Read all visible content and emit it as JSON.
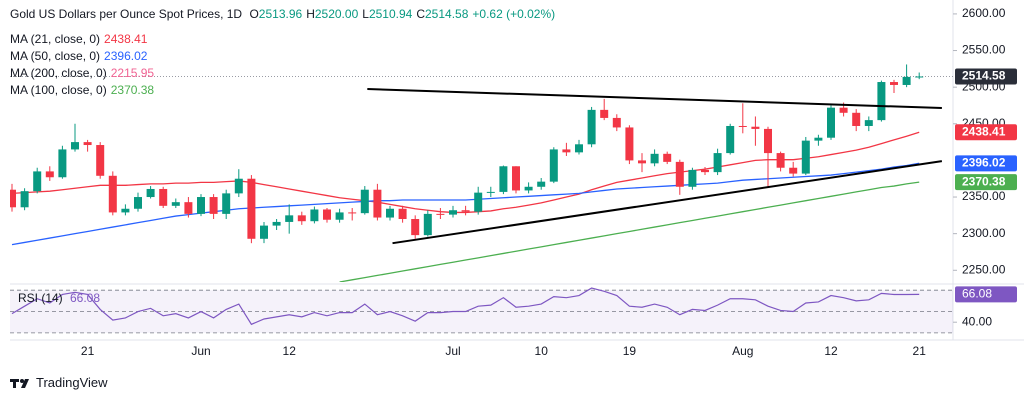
{
  "chart_data": {
    "type": "candlestick",
    "title": "Gold US Dollars per Ounce Spot Prices, 1D",
    "ohlc_legend": [
      {
        "label": "O",
        "value": "2513.96"
      },
      {
        "label": "H",
        "value": "2520.00"
      },
      {
        "label": "L",
        "value": "2510.94"
      },
      {
        "label": "C",
        "value": "2514.58"
      }
    ],
    "change": "+0.62 (+0.02%)",
    "up_color": "#089981",
    "down_color": "#f23645",
    "categories": [
      null,
      null,
      null,
      null,
      null,
      null,
      "21",
      null,
      null,
      null,
      null,
      null,
      null,
      null,
      null,
      "Jun",
      null,
      null,
      null,
      null,
      null,
      null,
      "12",
      null,
      null,
      null,
      null,
      null,
      null,
      null,
      null,
      null,
      null,
      null,
      null,
      "Jul",
      null,
      null,
      null,
      null,
      null,
      null,
      "10",
      null,
      null,
      null,
      null,
      null,
      null,
      "19",
      null,
      null,
      null,
      null,
      null,
      null,
      null,
      null,
      "Aug",
      null,
      null,
      null,
      null,
      null,
      null,
      "12",
      null,
      null,
      null,
      null,
      null,
      null,
      "21"
    ],
    "open": [
      2360,
      2336,
      2358,
      2385,
      2377,
      2415,
      2425,
      2421,
      2379,
      2329,
      2334,
      2350,
      2361,
      2338,
      2343,
      2327,
      2350,
      2327,
      2355,
      2375,
      2293,
      2311,
      2316,
      2325,
      2317,
      2333,
      2319,
      2329,
      2328,
      2360,
      2322,
      2334,
      2320,
      2298,
      2327,
      2326,
      2332,
      2330,
      2356,
      2357,
      2392,
      2359,
      2364,
      2371,
      2415,
      2411,
      2422,
      2469,
      2458,
      2445,
      2400,
      2396,
      2409,
      2398,
      2364,
      2387,
      2384,
      2410,
      2447,
      2446,
      2443,
      2410,
      2390,
      2382,
      2427,
      2431,
      2472,
      2465,
      2447,
      2455,
      2507,
      2503,
      2513.96
    ],
    "high": [
      2368,
      2362,
      2390,
      2392,
      2420,
      2450,
      2428,
      2425,
      2385,
      2340,
      2356,
      2365,
      2364,
      2348,
      2350,
      2354,
      2354,
      2360,
      2388,
      2380,
      2316,
      2320,
      2340,
      2330,
      2337,
      2335,
      2334,
      2335,
      2365,
      2368,
      2338,
      2338,
      2325,
      2332,
      2335,
      2338,
      2338,
      2364,
      2364,
      2393,
      2392,
      2370,
      2376,
      2418,
      2424,
      2428,
      2473,
      2484,
      2463,
      2448,
      2410,
      2415,
      2412,
      2401,
      2390,
      2391,
      2416,
      2450,
      2478,
      2460,
      2446,
      2412,
      2398,
      2432,
      2435,
      2475,
      2479,
      2470,
      2460,
      2509,
      2510,
      2531,
      2520
    ],
    "low": [
      2330,
      2332,
      2355,
      2372,
      2375,
      2412,
      2412,
      2375,
      2325,
      2325,
      2330,
      2348,
      2335,
      2335,
      2322,
      2324,
      2320,
      2320,
      2350,
      2287,
      2287,
      2305,
      2300,
      2312,
      2314,
      2315,
      2315,
      2318,
      2326,
      2318,
      2318,
      2315,
      2293,
      2296,
      2320,
      2322,
      2325,
      2326,
      2350,
      2354,
      2355,
      2355,
      2360,
      2369,
      2406,
      2408,
      2418,
      2455,
      2440,
      2395,
      2384,
      2392,
      2395,
      2353,
      2360,
      2380,
      2380,
      2408,
      2437,
      2420,
      2364,
      2385,
      2378,
      2380,
      2420,
      2428,
      2460,
      2440,
      2440,
      2453,
      2492,
      2500,
      2510.94
    ],
    "close": [
      2336,
      2358,
      2385,
      2377,
      2415,
      2425,
      2421,
      2379,
      2329,
      2334,
      2350,
      2361,
      2338,
      2343,
      2327,
      2350,
      2327,
      2355,
      2375,
      2293,
      2311,
      2316,
      2325,
      2317,
      2333,
      2319,
      2329,
      2328,
      2360,
      2322,
      2334,
      2320,
      2298,
      2327,
      2326,
      2332,
      2330,
      2356,
      2357,
      2392,
      2359,
      2364,
      2371,
      2415,
      2411,
      2422,
      2469,
      2458,
      2445,
      2400,
      2396,
      2409,
      2398,
      2364,
      2387,
      2384,
      2410,
      2447,
      2446,
      2443,
      2410,
      2390,
      2382,
      2427,
      2431,
      2472,
      2465,
      2447,
      2455,
      2507,
      2503,
      2514,
      2514.58
    ],
    "last_price_label": "2514.58",
    "overlays": [
      {
        "name": "MA (21, close, 0)",
        "color": "#f23645",
        "value_label": "2438.41",
        "values": [
          2355,
          2356,
          2357,
          2358,
          2360,
          2362,
          2364,
          2366,
          2366,
          2366,
          2367,
          2368,
          2368,
          2369,
          2369,
          2370,
          2370,
          2371,
          2372,
          2370,
          2367,
          2364,
          2361,
          2358,
          2355,
          2352,
          2349,
          2347,
          2345,
          2343,
          2340,
          2337,
          2334,
          2332,
          2330,
          2329,
          2329,
          2330,
          2331,
          2334,
          2336,
          2339,
          2342,
          2346,
          2350,
          2354,
          2360,
          2365,
          2370,
          2373,
          2376,
          2379,
          2382,
          2384,
          2386,
          2388,
          2391,
          2394,
          2397,
          2400,
          2401,
          2401,
          2401,
          2403,
          2405,
          2408,
          2411,
          2414,
          2418,
          2423,
          2428,
          2433,
          2438.41
        ]
      },
      {
        "name": "MA (50, close, 0)",
        "color": "#2962ff",
        "value_label": "2396.02",
        "values": [
          2285,
          2288,
          2291,
          2294,
          2297,
          2300,
          2303,
          2306,
          2309,
          2312,
          2315,
          2318,
          2321,
          2324,
          2326,
          2328,
          2330,
          2332,
          2334,
          2335,
          2336,
          2337,
          2338,
          2339,
          2340,
          2341,
          2342,
          2343,
          2344,
          2345,
          2345,
          2346,
          2346,
          2346,
          2346,
          2346,
          2346,
          2347,
          2348,
          2349,
          2350,
          2351,
          2352,
          2353,
          2354,
          2355,
          2357,
          2359,
          2361,
          2362,
          2363,
          2364,
          2365,
          2366,
          2367,
          2368,
          2369,
          2371,
          2373,
          2374,
          2375,
          2376,
          2377,
          2378,
          2379,
          2380,
          2382,
          2384,
          2386,
          2388,
          2391,
          2393,
          2396.02
        ]
      },
      {
        "name": "MA (200, close, 0)",
        "color": "#f06292",
        "value_label": "2215.95"
      },
      {
        "name": "MA (100, close, 0)",
        "color": "#4caf50",
        "value_label": "2370.38",
        "values": [
          null,
          null,
          null,
          null,
          null,
          null,
          null,
          null,
          null,
          null,
          null,
          null,
          null,
          null,
          null,
          null,
          null,
          null,
          null,
          null,
          null,
          null,
          null,
          null,
          null,
          null,
          2234,
          2237,
          2240,
          2243,
          2246,
          2249,
          2252,
          2255,
          2258,
          2261,
          2264,
          2267,
          2270,
          2273,
          2276,
          2279,
          2282,
          2285,
          2288,
          2291,
          2294,
          2297,
          2300,
          2303,
          2306,
          2309,
          2312,
          2315,
          2318,
          2321,
          2324,
          2327,
          2330,
          2333,
          2336,
          2339,
          2342,
          2345,
          2348,
          2351,
          2354,
          2357,
          2360,
          2363,
          2365,
          2368,
          2370.38
        ]
      }
    ],
    "trendlines": [
      {
        "x": [
          28.2,
          73.8
        ],
        "y": [
          2497.5,
          2471.5
        ]
      },
      {
        "x": [
          30.2,
          73.8
        ],
        "y": [
          2287,
          2399
        ]
      }
    ],
    "ylim": [
      2234,
      2619
    ],
    "yticks": [
      {
        "value": 2250,
        "label": "2250.00"
      },
      {
        "value": 2300,
        "label": "2300.00"
      },
      {
        "value": 2350,
        "label": "2350.00"
      },
      {
        "value": 2450,
        "label": "2450.00"
      },
      {
        "value": 2500,
        "label": "2500.00"
      },
      {
        "value": 2550,
        "label": "2550.00"
      },
      {
        "value": 2600,
        "label": "2600.00"
      }
    ],
    "grid": false,
    "rsi": {
      "name": "RSI (14)",
      "value_label": "66.08",
      "color": "#7e57c2",
      "values": [
        48,
        55,
        62,
        58,
        66,
        68,
        66,
        52,
        42,
        44,
        50,
        53,
        46,
        48,
        44,
        50,
        44,
        52,
        57,
        38,
        43,
        45,
        47,
        45,
        49,
        46,
        49,
        49,
        57,
        47,
        50,
        46,
        41,
        49,
        49,
        50,
        50,
        55,
        56,
        63,
        54,
        55,
        57,
        64,
        63,
        65,
        72,
        69,
        65,
        55,
        54,
        57,
        54,
        47,
        52,
        51,
        56,
        62,
        62,
        61,
        55,
        51,
        50,
        58,
        59,
        65,
        63,
        60,
        61,
        67,
        66,
        66,
        66.08
      ],
      "ylim": [
        28,
        73
      ],
      "yticks": [
        {
          "value": 40,
          "label": "40.00"
        }
      ],
      "levels": [
        70,
        50,
        30
      ]
    }
  },
  "footer": "TradingView"
}
